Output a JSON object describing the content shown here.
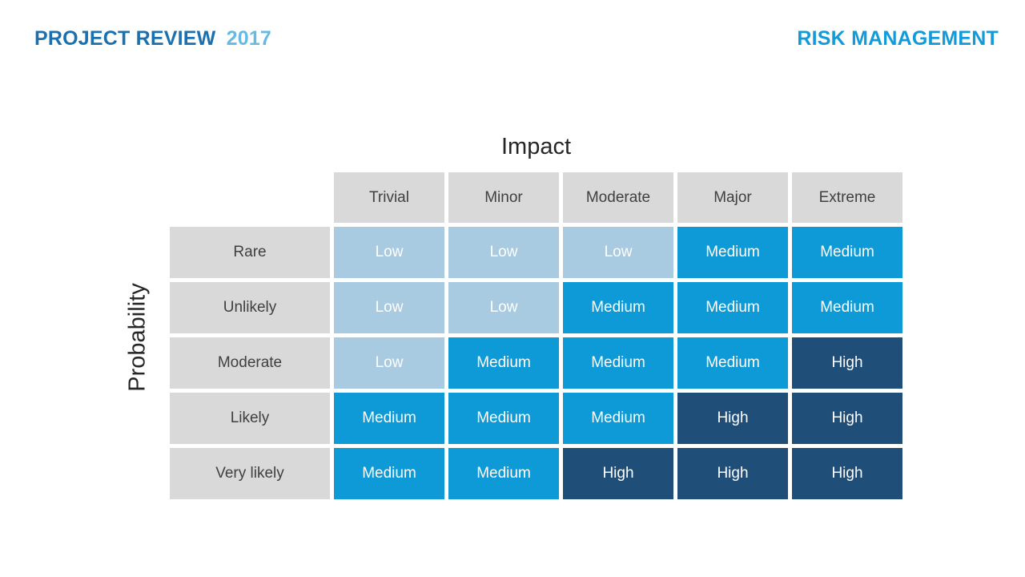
{
  "header": {
    "left_title_main": "PROJECT REVIEW",
    "left_title_year": "2017",
    "right_title": "RISK MANAGEMENT"
  },
  "matrix": {
    "x_axis_label": "Impact",
    "y_axis_label": "Probability",
    "columns": [
      "Trivial",
      "Minor",
      "Moderate",
      "Major",
      "Extreme"
    ],
    "rows": [
      "Rare",
      "Unlikely",
      "Moderate",
      "Likely",
      "Very likely"
    ],
    "cells": [
      [
        "Low",
        "Low",
        "Low",
        "Medium",
        "Medium"
      ],
      [
        "Low",
        "Low",
        "Medium",
        "Medium",
        "Medium"
      ],
      [
        "Low",
        "Medium",
        "Medium",
        "Medium",
        "High"
      ],
      [
        "Medium",
        "Medium",
        "Medium",
        "High",
        "High"
      ],
      [
        "Medium",
        "Medium",
        "High",
        "High",
        "High"
      ]
    ],
    "levels": [
      [
        "low",
        "low",
        "low",
        "medium",
        "medium"
      ],
      [
        "low",
        "low",
        "medium",
        "medium",
        "medium"
      ],
      [
        "low",
        "medium",
        "medium",
        "medium",
        "high"
      ],
      [
        "medium",
        "medium",
        "medium",
        "high",
        "high"
      ],
      [
        "medium",
        "medium",
        "high",
        "high",
        "high"
      ]
    ]
  },
  "colors": {
    "low": "#A8CBE2",
    "medium": "#0E9AD6",
    "high": "#1F4E79",
    "header_cell_bg": "#D9D9D9",
    "header_cell_text": "#404040",
    "axis_title_text": "#262626",
    "title_project": "#1B70B0",
    "title_review": "#1A86C3",
    "title_year": "#66B9E3",
    "title_right": "#129BDB"
  },
  "chart_data": {
    "type": "heatmap",
    "title": "",
    "xlabel": "Impact",
    "ylabel": "Probability",
    "x_categories": [
      "Trivial",
      "Minor",
      "Moderate",
      "Major",
      "Extreme"
    ],
    "y_categories": [
      "Rare",
      "Unlikely",
      "Moderate",
      "Likely",
      "Very likely"
    ],
    "cell_labels": [
      [
        "Low",
        "Low",
        "Low",
        "Medium",
        "Medium"
      ],
      [
        "Low",
        "Low",
        "Medium",
        "Medium",
        "Medium"
      ],
      [
        "Low",
        "Medium",
        "Medium",
        "Medium",
        "High"
      ],
      [
        "Medium",
        "Medium",
        "Medium",
        "High",
        "High"
      ],
      [
        "Medium",
        "Medium",
        "High",
        "High",
        "High"
      ]
    ],
    "value_scale": [
      "Low",
      "Medium",
      "High"
    ],
    "legend": "none",
    "grid": "off"
  }
}
